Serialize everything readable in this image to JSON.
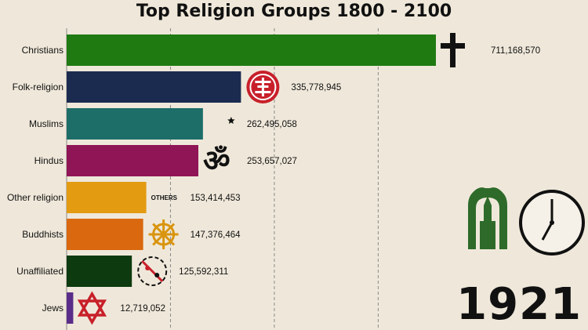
{
  "chart_data": {
    "type": "bar",
    "orientation": "horizontal",
    "title": "Top Religion Groups 1800 - 2100",
    "year": "1921",
    "grid": true,
    "xlim": [
      0,
      800000000
    ],
    "categories": [
      "Christians",
      "Folk-religion",
      "Muslims",
      "Hindus",
      "Other religion",
      "Buddhists",
      "Unaffiliated",
      "Jews"
    ],
    "values": [
      711168570,
      335778945,
      262495058,
      253657027,
      153414453,
      147376464,
      125592311,
      12719052
    ],
    "value_labels": [
      "711,168,570",
      "335,778,945",
      "262,495,058",
      "253,657,027",
      "153,414,453",
      "147,376,464",
      "125,592,311",
      "12,719,052"
    ],
    "colors": [
      "#1f7a12",
      "#1b2b50",
      "#1d6d68",
      "#8f1556",
      "#e39b12",
      "#d9680f",
      "#0d3a0f",
      "#5b2d8a"
    ],
    "icons": [
      "cross-icon",
      "shou-symbol-icon",
      "crescent-star-icon",
      "om-icon",
      "others-text-icon",
      "dharma-wheel-icon",
      "unaffiliated-symbols-icon",
      "star-of-david-icon"
    ],
    "others_label": "OTHERS"
  },
  "logo": {
    "icons": [
      "mosque-logo-icon",
      "clock-icon"
    ],
    "color": "#2e6b2a"
  }
}
